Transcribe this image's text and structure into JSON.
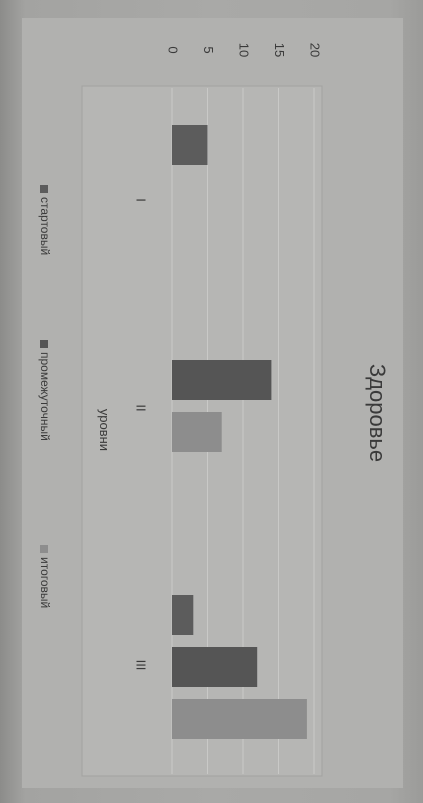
{
  "chart_data": {
    "type": "bar",
    "title": "Здоровье",
    "xlabel": "уровни",
    "ylabel": "",
    "categories": [
      "I",
      "II",
      "III"
    ],
    "series": [
      {
        "name": "стартовый",
        "values": [
          5,
          0,
          3
        ],
        "color": "#5c5c5c"
      },
      {
        "name": "промежуточный",
        "values": [
          0,
          14,
          12
        ],
        "color": "#555555"
      },
      {
        "name": "итоговый",
        "values": [
          0,
          7,
          19
        ],
        "color": "#8d8d8d"
      }
    ],
    "y_ticks": [
      "0",
      "5",
      "10",
      "15",
      "20"
    ],
    "ylim": [
      0,
      20
    ],
    "grid": true,
    "legend_position": "bottom",
    "orientation": "rotated 90° clockwise"
  }
}
